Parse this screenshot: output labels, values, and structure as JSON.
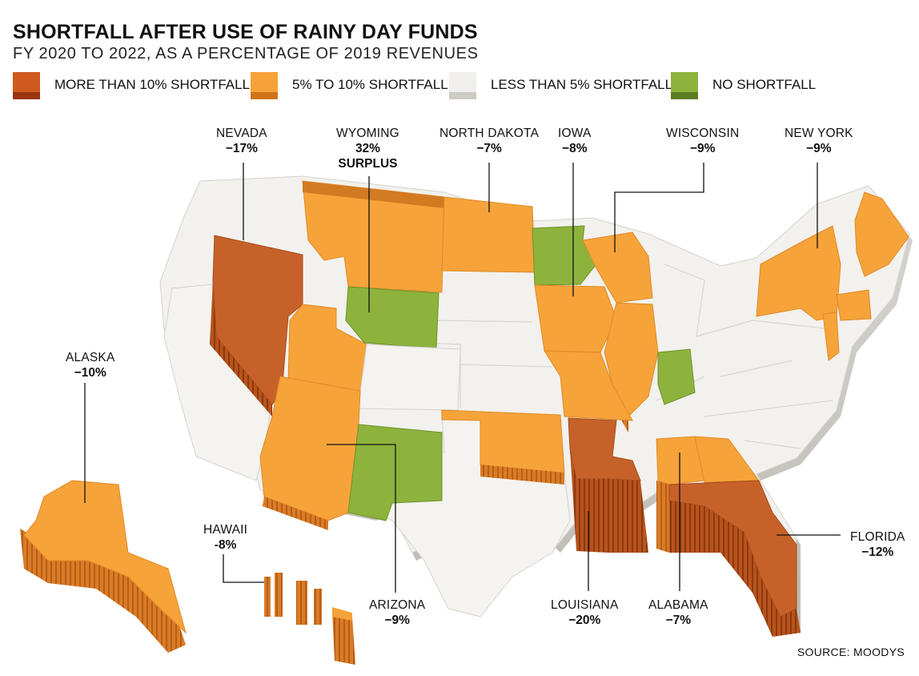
{
  "header": {
    "title": "SHORTFALL AFTER USE OF RAINY DAY FUNDS",
    "subtitle": "FY 2020 TO 2022, AS A PERCENTAGE OF 2019 REVENUES"
  },
  "legend": [
    {
      "label": "MORE THAN 10% SHORTFALL",
      "color": "#cf5a1e",
      "shade": "#9a3512"
    },
    {
      "label": "5% TO 10% SHORTFALL",
      "color": "#f5a23a",
      "shade": "#d0741c"
    },
    {
      "label": "LESS THAN 5% SHORTFALL",
      "color": "#f0efed",
      "shade": "#cdcac3"
    },
    {
      "label": "NO SHORTFALL",
      "color": "#8db33d",
      "shade": "#5c7c23"
    }
  ],
  "callouts": {
    "nevada": {
      "name": "NEVADA",
      "value": "−17%"
    },
    "wyoming": {
      "name": "WYOMING",
      "value": "32%",
      "note": "SURPLUS"
    },
    "north_dakota": {
      "name": "NORTH DAKOTA",
      "value": "−7%"
    },
    "iowa": {
      "name": "IOWA",
      "value": "−8%"
    },
    "wisconsin": {
      "name": "WISCONSIN",
      "value": "−9%"
    },
    "new_york": {
      "name": "NEW YORK",
      "value": "−9%"
    },
    "alaska": {
      "name": "ALASKA",
      "value": "−10%"
    },
    "hawaii": {
      "name": "HAWAII",
      "value": "-8%"
    },
    "arizona": {
      "name": "ARIZONA",
      "value": "−9%"
    },
    "louisiana": {
      "name": "LOUISIANA",
      "value": "−20%"
    },
    "alabama": {
      "name": "ALABAMA",
      "value": "−7%"
    },
    "florida": {
      "name": "FLORIDA",
      "value": "−12%"
    }
  },
  "source": "SOURCE: MOODYS"
}
